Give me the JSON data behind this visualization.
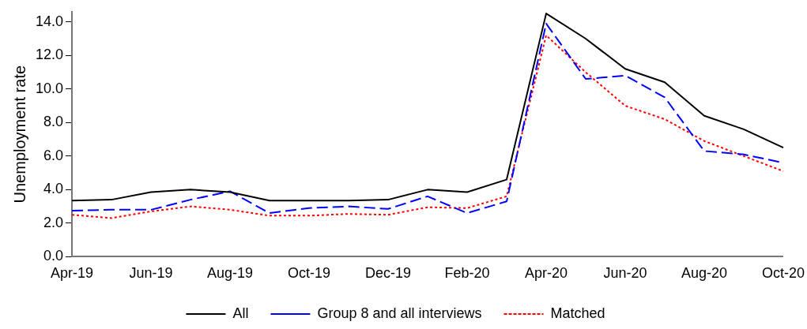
{
  "chart_data": {
    "type": "line",
    "ylabel": "Unemployment rate",
    "categories": [
      "Apr-19",
      null,
      "Jun-19",
      null,
      "Aug-19",
      null,
      "Oct-19",
      null,
      "Dec-19",
      null,
      "Feb-20",
      null,
      "Apr-20",
      null,
      "Jun-20",
      null,
      "Aug-20",
      null,
      "Oct-20"
    ],
    "series": [
      {
        "name": "All",
        "color": "#000000",
        "line_style": "solid",
        "values": [
          3.35,
          3.4,
          3.85,
          4.0,
          3.85,
          3.35,
          3.35,
          3.35,
          3.4,
          4.0,
          3.85,
          4.6,
          14.5,
          13.0,
          11.2,
          10.4,
          8.4,
          7.6,
          6.5
        ]
      },
      {
        "name": "Group 8 and all interviews",
        "color": "#0000ff",
        "line_style": "dashed",
        "values": [
          2.75,
          2.8,
          2.8,
          3.4,
          3.9,
          2.6,
          2.9,
          3.0,
          2.85,
          3.6,
          2.6,
          3.3,
          13.9,
          10.6,
          10.8,
          9.5,
          6.3,
          6.1,
          5.6
        ]
      },
      {
        "name": "Matched",
        "color": "#ff0000",
        "line_style": "dotted",
        "values": [
          2.5,
          2.3,
          2.7,
          3.0,
          2.8,
          2.45,
          2.45,
          2.55,
          2.5,
          2.95,
          2.9,
          3.6,
          13.2,
          11.0,
          9.0,
          8.2,
          6.9,
          6.0,
          5.1
        ]
      }
    ],
    "ylim": [
      0,
      14.6
    ],
    "yticks": [
      {
        "value": 0,
        "label": "0.0"
      },
      {
        "value": 2,
        "label": "2.0"
      },
      {
        "value": 4,
        "label": "4.0"
      },
      {
        "value": 6,
        "label": "6.0"
      },
      {
        "value": 8,
        "label": "8.0"
      },
      {
        "value": 10,
        "label": "10.0"
      },
      {
        "value": 12,
        "label": "12.0"
      },
      {
        "value": 14,
        "label": "14.0"
      }
    ],
    "grid": false,
    "legend": "bottom",
    "marker": "none"
  }
}
